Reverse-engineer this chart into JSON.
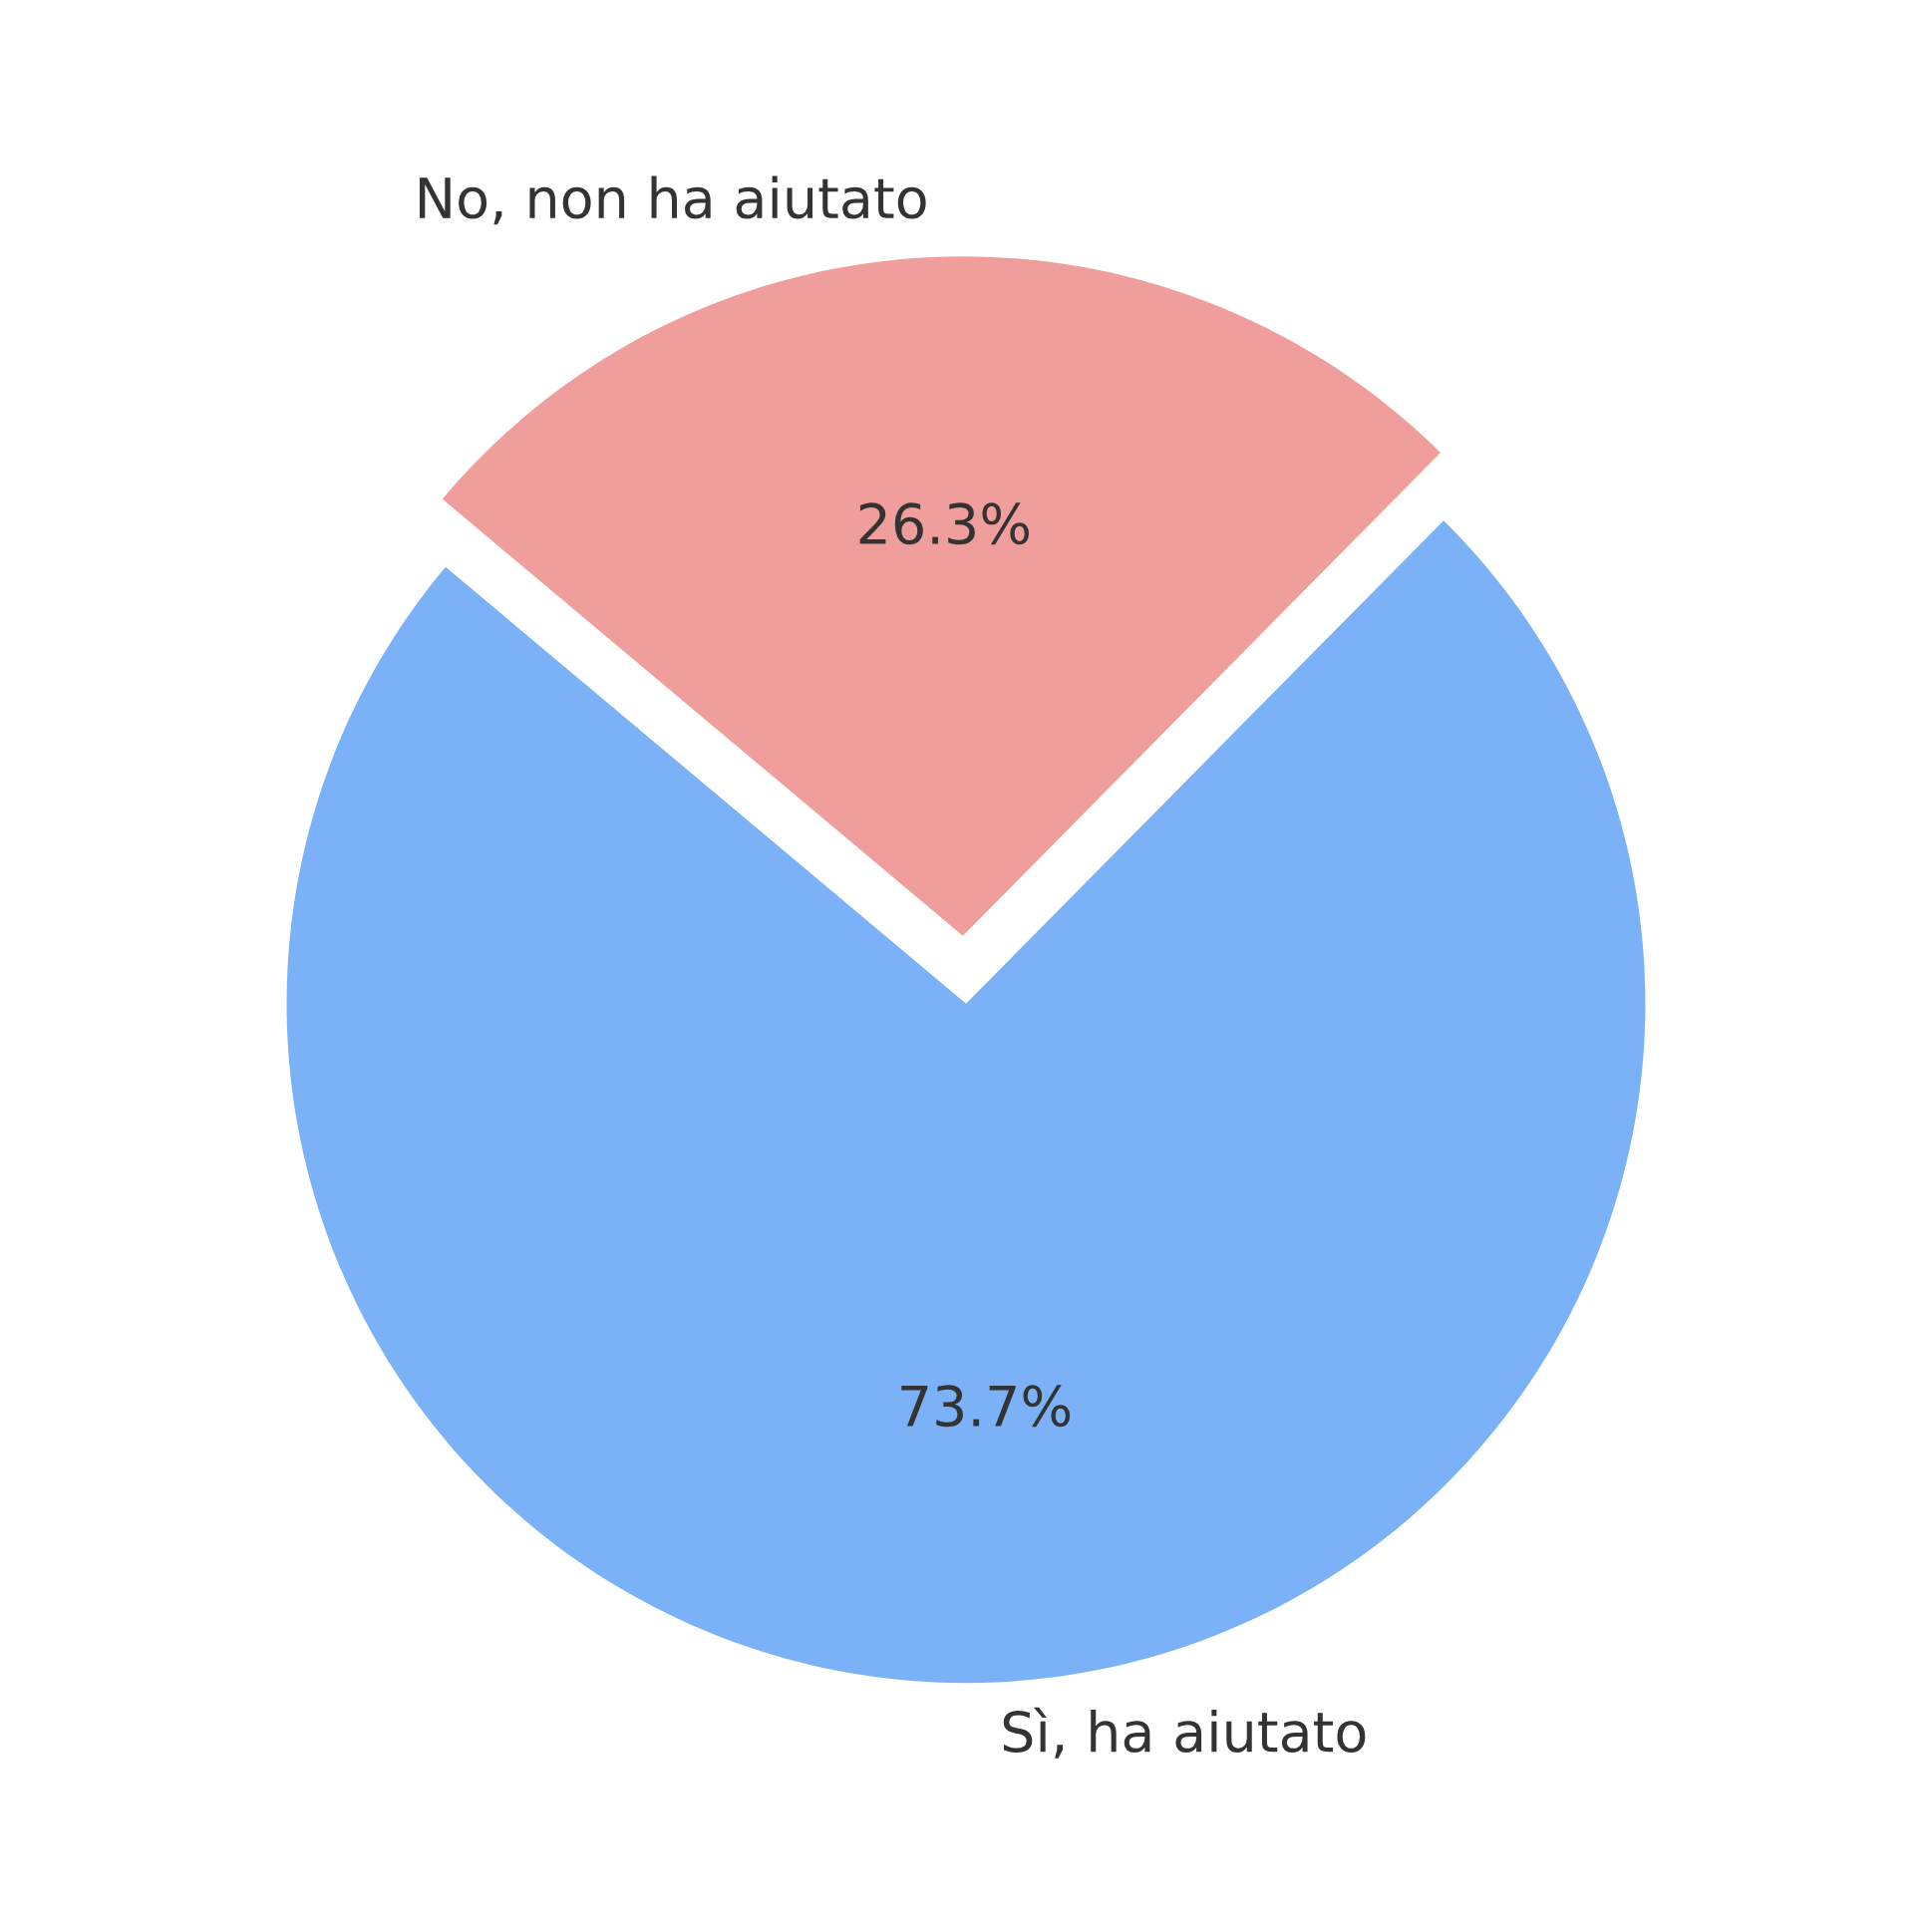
{
  "chart_data": {
    "type": "pie",
    "categories": [
      "Sì, ha aiutato",
      "No, non ha aiutato"
    ],
    "values": [
      73.7,
      26.3
    ],
    "colors": [
      "#7ab1f7",
      "#f09e9c"
    ],
    "value_labels": [
      "73.7%",
      "26.3%"
    ],
    "legend": false
  }
}
